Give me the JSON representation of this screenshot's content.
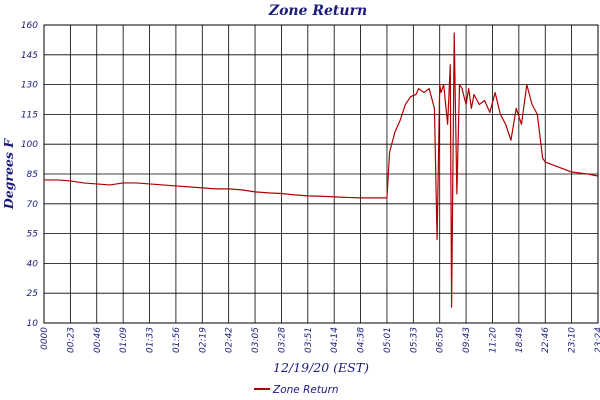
{
  "chart_data": {
    "type": "line",
    "title": "Zone Return",
    "xlabel": "12/19/20 (EST)",
    "ylabel": "Degrees F",
    "ylim": [
      10,
      160
    ],
    "yticks": [
      10,
      25,
      40,
      55,
      70,
      85,
      100,
      115,
      130,
      145,
      160
    ],
    "xticks": [
      "0000",
      "00:23",
      "00:46",
      "01:09",
      "01:33",
      "01:56",
      "02:19",
      "02:42",
      "03:05",
      "03:28",
      "03:51",
      "04:14",
      "04:38",
      "05:01",
      "05:33",
      "06:50",
      "09:43",
      "11:20",
      "18:49",
      "22:46",
      "23:10",
      "23:24"
    ],
    "grid": true,
    "legend": "bottom-center",
    "colors": {
      "series": "#b00000",
      "text": "#1b1b7a",
      "grid": "#000000"
    },
    "series": [
      {
        "name": "Zone Return",
        "x": [
          0,
          0.5,
          1,
          1.5,
          2,
          2.5,
          3,
          3.5,
          4,
          4.5,
          5,
          5.5,
          6,
          6.5,
          7,
          7.5,
          8,
          8.5,
          9,
          9.5,
          10,
          10.5,
          11,
          11.5,
          12,
          12.5,
          13,
          13.1,
          13.3,
          13.5,
          13.7,
          13.9,
          14.1,
          14.2,
          14.4,
          14.6,
          14.8,
          14.9,
          15.0,
          15.05,
          15.15,
          15.3,
          15.4,
          15.45,
          15.55,
          15.65,
          15.75,
          15.85,
          15.9,
          16.0,
          16.1,
          16.2,
          16.3,
          16.5,
          16.7,
          16.9,
          17.1,
          17.3,
          17.5,
          17.7,
          17.9,
          18.1,
          18.3,
          18.5,
          18.7,
          18.9,
          19.0,
          19.2,
          19.4,
          19.6,
          19.8,
          20.0,
          20.3,
          20.6,
          21
        ],
        "y": [
          82,
          82,
          81.5,
          80.5,
          80,
          79.5,
          80.5,
          80.5,
          80,
          79.5,
          79,
          78.5,
          78,
          77.5,
          77.5,
          77,
          76,
          75.5,
          75.2,
          74.5,
          74,
          73.8,
          73.5,
          73.2,
          73,
          73,
          73,
          96,
          106,
          112,
          120,
          124,
          125,
          128,
          126,
          128,
          118,
          52,
          130,
          126,
          130,
          110,
          140,
          18,
          156,
          75,
          130,
          128,
          125,
          120,
          128,
          118,
          125,
          120,
          122,
          116,
          126,
          115,
          110,
          102,
          118,
          110,
          130,
          120,
          115,
          93,
          91,
          90,
          89,
          88,
          87,
          86,
          85.5,
          85,
          84
        ]
      }
    ]
  }
}
